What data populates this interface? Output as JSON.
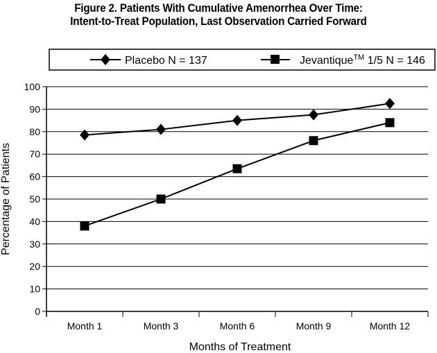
{
  "title_line1": "Figure 2.  Patients With Cumulative Amenorrhea Over Time:",
  "title_line2": "Intent-to-Treat Population, Last Observation Carried Forward",
  "legend": {
    "entries": [
      {
        "label": "Placebo N = 137",
        "marker": "diamond"
      },
      {
        "label_prefix": "Jevantique",
        "label_superscript": "TM",
        "label_suffix": " 1/5 N = 146",
        "marker": "square"
      }
    ]
  },
  "colors": {
    "line": "#000000",
    "grid": "#000000",
    "background": "#ffffff"
  },
  "chart_data": {
    "type": "line",
    "title": "Figure 2.  Patients With Cumulative Amenorrhea Over Time: Intent-to-Treat Population, Last Observation Carried Forward",
    "xlabel": "Months of Treatment",
    "ylabel": "Percentage of Patients",
    "categories": [
      "Month 1",
      "Month 3",
      "Month 6",
      "Month 9",
      "Month 12"
    ],
    "ylim": [
      0,
      100
    ],
    "yticks": [
      0,
      10,
      20,
      30,
      40,
      50,
      60,
      70,
      80,
      90,
      100
    ],
    "grid": "horizontal",
    "legend_position": "top",
    "series": [
      {
        "name": "Placebo N = 137",
        "marker": "diamond",
        "values": [
          78.5,
          81,
          85,
          87.5,
          92.5
        ]
      },
      {
        "name": "Jevantique™ 1/5 N = 146",
        "marker": "square",
        "values": [
          38,
          50,
          63.5,
          76,
          84
        ]
      }
    ]
  }
}
